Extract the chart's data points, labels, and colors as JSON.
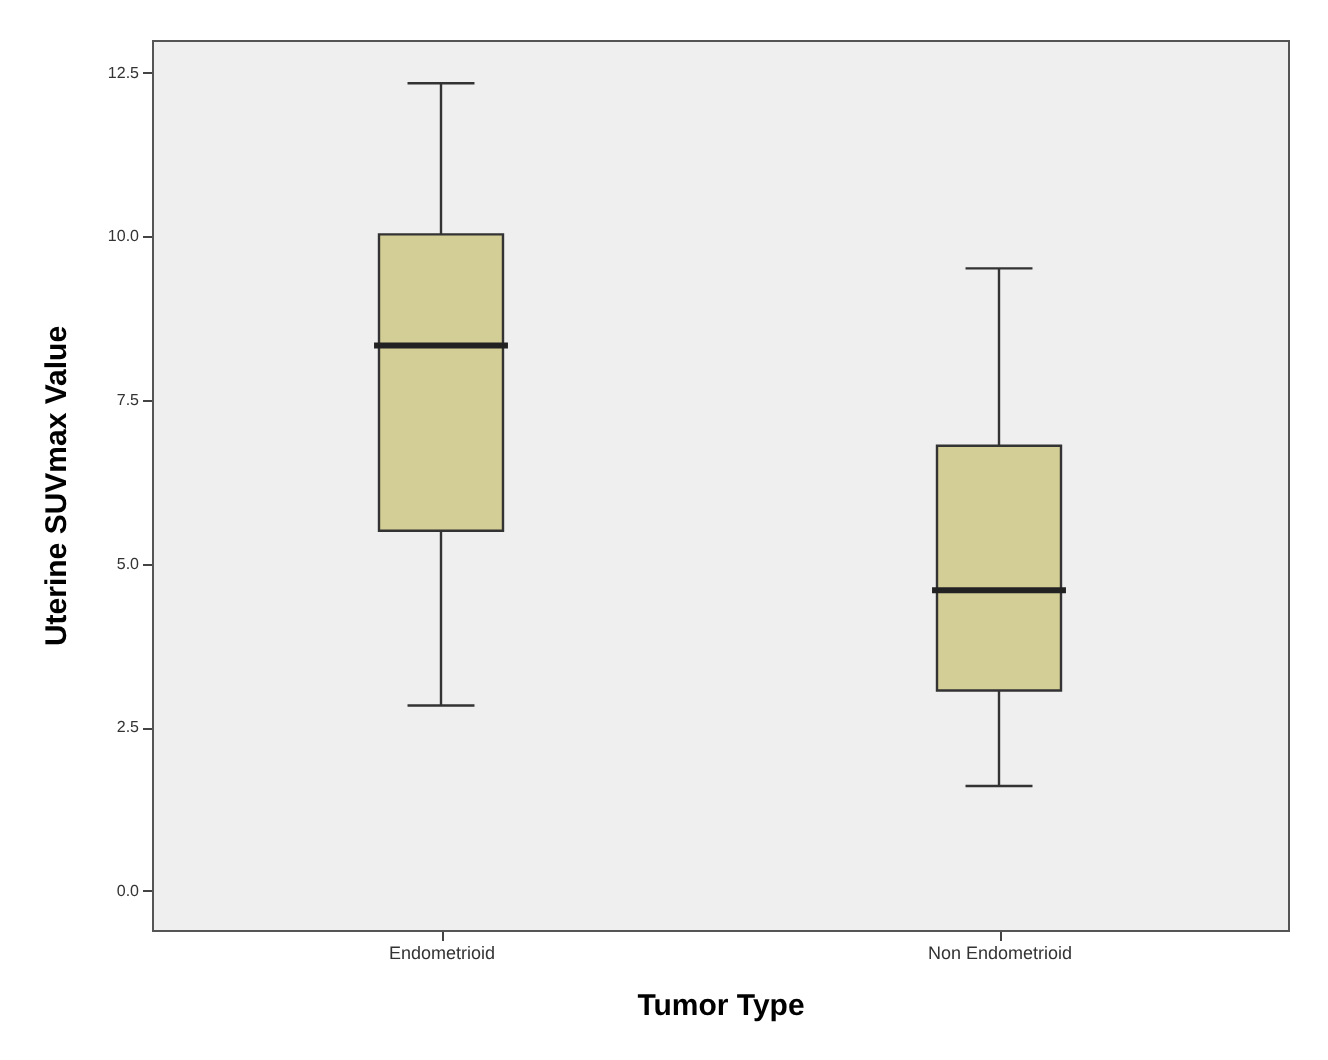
{
  "chart_data": {
    "type": "box",
    "xlabel": "Tumor Type",
    "ylabel": "Uterine SUVmax Value",
    "categories": [
      "Endometrioid",
      "Non Endometrioid"
    ],
    "boxes": [
      {
        "low": 2.83,
        "q1": 5.5,
        "median": 8.33,
        "q3": 10.03,
        "high": 12.34
      },
      {
        "low": 1.6,
        "q1": 3.06,
        "median": 4.59,
        "q3": 6.8,
        "high": 9.51
      }
    ],
    "color": "#d3cd96",
    "ylim": [
      -0.6,
      13.0
    ],
    "yticks": [
      {
        "value": 0,
        "label": "0.0"
      },
      2.5,
      {
        "value": 5,
        "label": "5.0"
      },
      7.5,
      {
        "value": 10,
        "label": "10.0"
      },
      12.5
    ],
    "grid": false
  }
}
